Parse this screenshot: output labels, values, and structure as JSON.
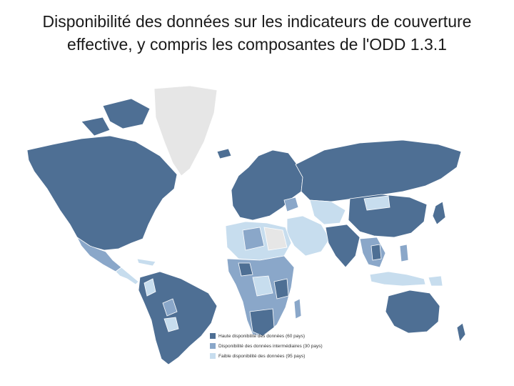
{
  "slide": {
    "title": "Disponibilité des données sur les indicateurs de couverture effective, y compris les composantes de l'ODD 1.3.1"
  },
  "map": {
    "colors": {
      "high": "#4e6f94",
      "intermediate": "#8aa7c9",
      "low": "#c7ddee",
      "no_data": "#e6e6e6",
      "border": "#ffffff",
      "water": "#ffffff"
    },
    "legend": [
      {
        "label": "Haute disponibilité des données (60 pays)",
        "color": "#4e6f94"
      },
      {
        "label": "Disponibilité des données intermédiaires (30 pays)",
        "color": "#8aa7c9"
      },
      {
        "label": "Faible disponibilité des données (95 pays)",
        "color": "#c7ddee"
      }
    ]
  }
}
